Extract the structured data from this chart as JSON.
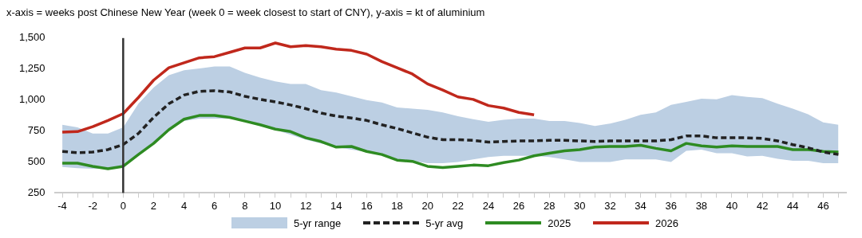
{
  "chart_data": {
    "type": "line",
    "title": "x-axis = weeks post Chinese New Year (week 0 = week closest to start of CNY), y-axis = kt of aluminium",
    "x": [
      -4,
      -3,
      -2,
      -1,
      0,
      1,
      2,
      3,
      4,
      5,
      6,
      7,
      8,
      9,
      10,
      11,
      12,
      13,
      14,
      15,
      16,
      17,
      18,
      19,
      20,
      21,
      22,
      23,
      24,
      25,
      26,
      27,
      28,
      29,
      30,
      31,
      32,
      33,
      34,
      35,
      36,
      37,
      38,
      39,
      40,
      41,
      42,
      43,
      44,
      45,
      46,
      47
    ],
    "series": [
      {
        "name": "5-yr avg",
        "type": "line",
        "color": "#222222",
        "line_style": "dashed",
        "values": [
          585,
          575,
          580,
          600,
          640,
          730,
          860,
          970,
          1040,
          1070,
          1075,
          1065,
          1030,
          1005,
          985,
          960,
          930,
          895,
          870,
          855,
          835,
          800,
          770,
          735,
          700,
          680,
          680,
          675,
          660,
          665,
          670,
          670,
          675,
          675,
          670,
          665,
          670,
          670,
          670,
          670,
          680,
          710,
          710,
          695,
          695,
          695,
          690,
          670,
          640,
          615,
          580,
          560
        ],
        "lower": [
          460,
          450,
          445,
          445,
          465,
          560,
          660,
          770,
          830,
          850,
          850,
          850,
          830,
          800,
          760,
          720,
          680,
          650,
          620,
          600,
          580,
          560,
          520,
          510,
          490,
          490,
          500,
          520,
          540,
          550,
          550,
          550,
          540,
          520,
          500,
          500,
          500,
          520,
          520,
          520,
          500,
          590,
          600,
          570,
          570,
          545,
          550,
          525,
          510,
          510,
          490,
          490
        ],
        "upper": [
          800,
          780,
          730,
          730,
          780,
          970,
          1100,
          1200,
          1240,
          1255,
          1270,
          1270,
          1220,
          1180,
          1150,
          1130,
          1130,
          1080,
          1060,
          1030,
          1000,
          980,
          940,
          930,
          920,
          900,
          870,
          845,
          825,
          840,
          850,
          850,
          830,
          830,
          815,
          790,
          810,
          840,
          880,
          900,
          960,
          985,
          1010,
          1005,
          1040,
          1025,
          1015,
          970,
          930,
          885,
          820,
          800
        ]
      },
      {
        "name": "2025",
        "type": "line",
        "color": "#2e8b22",
        "line_style": "solid",
        "values": [
          490,
          490,
          465,
          445,
          465,
          560,
          650,
          760,
          845,
          875,
          875,
          860,
          830,
          800,
          765,
          745,
          695,
          665,
          620,
          625,
          585,
          560,
          515,
          505,
          465,
          455,
          465,
          475,
          470,
          495,
          515,
          550,
          570,
          590,
          600,
          620,
          625,
          625,
          635,
          610,
          590,
          650,
          630,
          620,
          630,
          625,
          625,
          625,
          600,
          600,
          585,
          580
        ]
      },
      {
        "name": "2026",
        "type": "line",
        "color": "#c0281c",
        "line_style": "solid",
        "values": [
          740,
          745,
          785,
          835,
          890,
          1020,
          1160,
          1260,
          1300,
          1340,
          1350,
          1385,
          1420,
          1420,
          1460,
          1430,
          1440,
          1430,
          1410,
          1400,
          1370,
          1310,
          1260,
          1210,
          1130,
          1080,
          1025,
          1005,
          955,
          935,
          900,
          880,
          null,
          null,
          null,
          null,
          null,
          null,
          null,
          null,
          null,
          null,
          null,
          null,
          null,
          null,
          null,
          null,
          null,
          null,
          null,
          null
        ]
      }
    ],
    "xlim": [
      -4.5,
      47.5
    ],
    "xticks": [
      -4,
      {
        "value": -3,
        "label": null
      },
      -2,
      {
        "value": -1,
        "label": null
      },
      0,
      {
        "value": 1,
        "label": null
      },
      2,
      {
        "value": 3,
        "label": null
      },
      4,
      {
        "value": 5,
        "label": null
      },
      6,
      {
        "value": 7,
        "label": null
      },
      8,
      {
        "value": 9,
        "label": null
      },
      10,
      {
        "value": 11,
        "label": null
      },
      12,
      {
        "value": 13,
        "label": null
      },
      14,
      {
        "value": 15,
        "label": null
      },
      16,
      {
        "value": 17,
        "label": null
      },
      18,
      {
        "value": 19,
        "label": null
      },
      20,
      {
        "value": 21,
        "label": null
      },
      22,
      {
        "value": 23,
        "label": null
      },
      24,
      {
        "value": 25,
        "label": null
      },
      26,
      {
        "value": 27,
        "label": null
      },
      28,
      {
        "value": 29,
        "label": null
      },
      30,
      {
        "value": 31,
        "label": null
      },
      32,
      {
        "value": 33,
        "label": null
      },
      34,
      {
        "value": 35,
        "label": null
      },
      36,
      {
        "value": 37,
        "label": null
      },
      38,
      {
        "value": 39,
        "label": null
      },
      40,
      {
        "value": 41,
        "label": null
      },
      42,
      {
        "value": 43,
        "label": null
      },
      44,
      {
        "value": 45,
        "label": null
      },
      46,
      {
        "value": 47,
        "label": null
      }
    ],
    "ylim": [
      250,
      1500
    ],
    "yticks": [
      250,
      500,
      750,
      {
        "value": 1000,
        "label": "1,000"
      },
      {
        "value": 1250,
        "label": "1,250"
      },
      {
        "value": 1500,
        "label": "1,500"
      }
    ],
    "ref_lines": [
      {
        "axis": "x",
        "value": 0,
        "color": "#333333"
      }
    ],
    "annotations": [
      "5-yr range"
    ],
    "grid": false,
    "legend": "bottom",
    "marker": "none"
  }
}
